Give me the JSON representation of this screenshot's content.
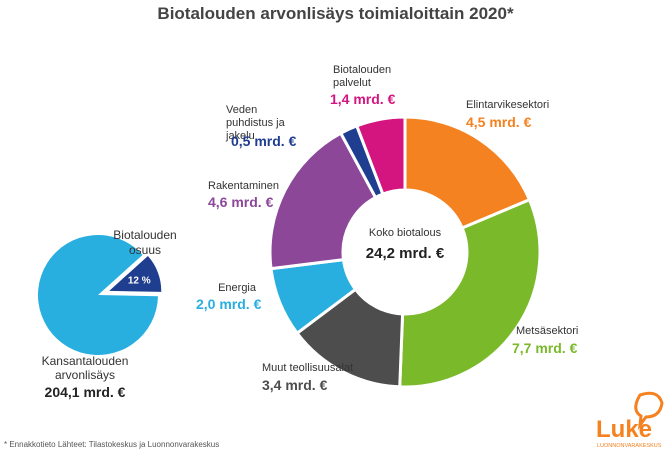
{
  "chart_data": [
    {
      "type": "donut",
      "title": "Biotalouden arvonlisäys toimialoittain 2020*",
      "categories": [
        "Elintarvikesektori",
        "Metsäsektori",
        "Muut teollisuusalat",
        "Energia",
        "Rakentaminen",
        "Veden puhdistus ja jakelu",
        "Biotalouden palvelut"
      ],
      "values": [
        4.5,
        7.7,
        3.4,
        2.0,
        4.6,
        0.5,
        1.4
      ],
      "value_labels": [
        "4,5 mrd. €",
        "7,7 mrd. €",
        "3,4 mrd. €",
        "2,0 mrd. €",
        "4,6 mrd. €",
        "0,5 mrd. €",
        "1,4 mrd. €"
      ],
      "colors": [
        "#f58220",
        "#7ab929",
        "#4d4d4d",
        "#29aee0",
        "#8c4799",
        "#1f3e8f",
        "#d5157f"
      ],
      "center_title": "Koko biotalous",
      "center_label": "24,2 mrd. €"
    },
    {
      "type": "pie",
      "categories": [
        "Biotalouden osuus",
        null
      ],
      "values": [
        12,
        88
      ],
      "value_labels": [
        "12 %",
        null
      ],
      "colors": [
        "#1f3e8f",
        "#29aee0"
      ],
      "total_title": "Kansantalouden arvonlisäys",
      "total_label": "204,1 mrd. €"
    }
  ],
  "footnote": "* Ennakkotieto  Lähteet: Tilastokeskus ja Luonnonvarakeskus",
  "logo": {
    "name": "Luke",
    "subtitle": "LUONNONVARAKESKUS"
  }
}
